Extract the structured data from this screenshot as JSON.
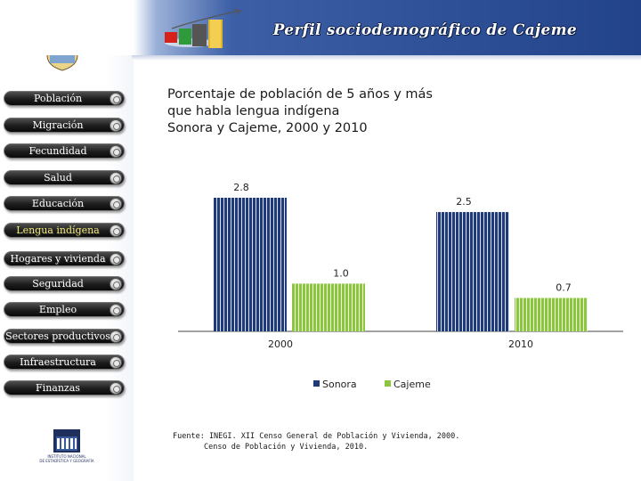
{
  "header": {
    "title": "Perfil sociodemográfico de Cajeme"
  },
  "sidebar": {
    "items": [
      {
        "label": "Población",
        "active": false
      },
      {
        "label": "Migración",
        "active": false
      },
      {
        "label": "Fecundidad",
        "active": false
      },
      {
        "label": "Salud",
        "active": false
      },
      {
        "label": "Educación",
        "active": false
      },
      {
        "label": "Lengua indígena",
        "active": true
      },
      {
        "label": "Hogares y vivienda",
        "active": false
      },
      {
        "label": "Seguridad",
        "active": false
      },
      {
        "label": "Empleo",
        "active": false
      },
      {
        "label": "Sectores productivos",
        "active": false
      },
      {
        "label": "Infraestructura",
        "active": false
      },
      {
        "label": "Finanzas",
        "active": false
      }
    ],
    "logo_text": "INEGI",
    "logo_caption_1": "INSTITUTO NACIONAL",
    "logo_caption_2": "DE ESTADÍSTICA Y GEOGRAFÍA"
  },
  "colors": {
    "sonora": "#1f3a78",
    "cajeme": "#8cc63e",
    "header_dark": "#22438a"
  },
  "chart_data": {
    "type": "bar",
    "title_lines": [
      "Porcentaje de población de 5 años y más",
      "que habla lengua indígena",
      "Sonora y Cajeme, 2000 y 2010"
    ],
    "categories": [
      "2000",
      "2010"
    ],
    "series": [
      {
        "name": "Sonora",
        "values": [
          2.8,
          2.5
        ],
        "labels": [
          "2.8",
          "2.5"
        ]
      },
      {
        "name": "Cajeme",
        "values": [
          1.0,
          0.7
        ],
        "labels": [
          "1.0",
          "0.7"
        ]
      }
    ],
    "ylim": [
      0,
      2.8
    ],
    "grid": false,
    "legend_position": "bottom"
  },
  "source": {
    "line1": "Fuente: INEGI. XII Censo General de Población y Vivienda, 2000.",
    "line2": "Censo de Población y Vivienda, 2010."
  }
}
